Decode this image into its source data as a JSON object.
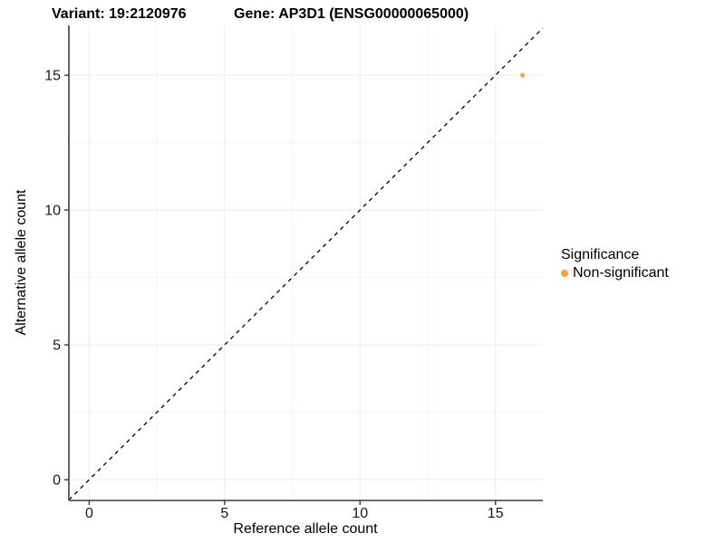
{
  "titles": {
    "variant": "Variant: 19:2120976",
    "gene": "Gene: AP3D1 (ENSG00000065000)"
  },
  "axes": {
    "x_label": "Reference allele count",
    "y_label": "Alternative allele count"
  },
  "legend": {
    "title": "Significance",
    "items": [
      {
        "label": "Non-significant",
        "color": "#F9A13A"
      }
    ]
  },
  "colors": {
    "point": "#F9A13A",
    "grid_major": "#ECECEC",
    "grid_minor": "#F4F4F4",
    "axis_line": "#3C3C3C",
    "tick_text": "#1A1A1A",
    "identity_line": "#000000",
    "background": "#FFFFFF"
  },
  "chart_data": {
    "type": "scatter",
    "title_left": "Variant: 19:2120976",
    "title_right": "Gene: AP3D1 (ENSG00000065000)",
    "xlabel": "Reference allele count",
    "ylabel": "Alternative allele count",
    "x_ticks": [
      0,
      5,
      10,
      15
    ],
    "y_ticks": [
      0,
      5,
      10,
      15
    ],
    "x_minor_ticks": [
      2.5,
      7.5,
      12.5
    ],
    "y_minor_ticks": [
      2.5,
      7.5,
      12.5
    ],
    "xlim": [
      -0.75,
      16.75
    ],
    "ylim": [
      -0.77,
      16.85
    ],
    "grid": true,
    "legend_position": "right",
    "series": [
      {
        "name": "Non-significant",
        "color": "#F9A13A",
        "points": [
          {
            "x": 16,
            "y": 15
          }
        ]
      }
    ],
    "reference_line": {
      "type": "identity",
      "equation": "y = x",
      "style": "dashed",
      "color": "#000000"
    }
  }
}
